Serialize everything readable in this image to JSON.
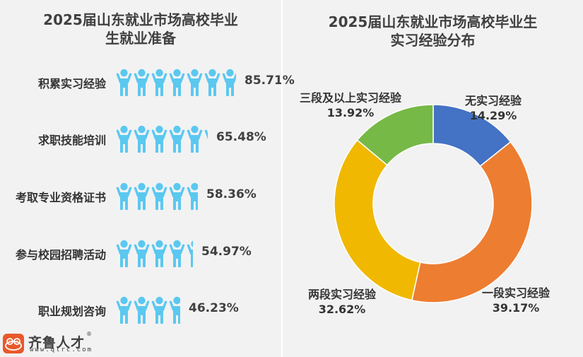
{
  "left_chart": {
    "title_line1": "2025届山东就业市场高校毕业",
    "title_line2": "生就业准备",
    "icon": "person-arms-up-icon",
    "icon_color": "#5bc8f0",
    "rows": [
      {
        "label": "积累实习经验",
        "value": "85.71%",
        "pct": 85.71
      },
      {
        "label": "求职技能培训",
        "value": "65.48%",
        "pct": 65.48
      },
      {
        "label": "考取专业资格证书",
        "value": "58.36%",
        "pct": 58.36
      },
      {
        "label": "参与校园招聘活动",
        "value": "54.97%",
        "pct": 54.97
      },
      {
        "label": "职业规划咨询",
        "value": "46.23%",
        "pct": 46.23
      }
    ]
  },
  "right_chart": {
    "title_line1": "2025届山东就业市场高校毕业生",
    "title_line2": "实习经验分布",
    "slices": [
      {
        "label": "无实习经验",
        "value": "14.29%",
        "pct": 14.29,
        "color": "#4472c4"
      },
      {
        "label": "一段实习经验",
        "value": "39.17%",
        "pct": 39.17,
        "color": "#ed7d31"
      },
      {
        "label": "两段实习经验",
        "value": "32.62%",
        "pct": 32.62,
        "color": "#f0b800"
      },
      {
        "label": "三段及以上实习经验",
        "value": "13.92%",
        "pct": 13.92,
        "color": "#76b947"
      }
    ]
  },
  "logo": {
    "name": "齐鲁人才",
    "url": "www.qlrc.com",
    "registered": "®"
  },
  "chart_data": [
    {
      "type": "bar",
      "title": "2025届山东就业市场高校毕业生就业准备",
      "categories": [
        "积累实习经验",
        "求职技能培训",
        "考取专业资格证书",
        "参与校园招聘活动",
        "职业规划咨询"
      ],
      "values": [
        85.71,
        65.48,
        58.36,
        54.97,
        46.23
      ],
      "unit": "%",
      "style": "pictogram",
      "xlabel": "",
      "ylabel": ""
    },
    {
      "type": "pie",
      "donut": true,
      "title": "2025届山东就业市场高校毕业生实习经验分布",
      "categories": [
        "无实习经验",
        "一段实习经验",
        "两段实习经验",
        "三段及以上实习经验"
      ],
      "values": [
        14.29,
        39.17,
        32.62,
        13.92
      ],
      "unit": "%",
      "colors": [
        "#4472c4",
        "#ed7d31",
        "#f0b800",
        "#76b947"
      ]
    }
  ]
}
